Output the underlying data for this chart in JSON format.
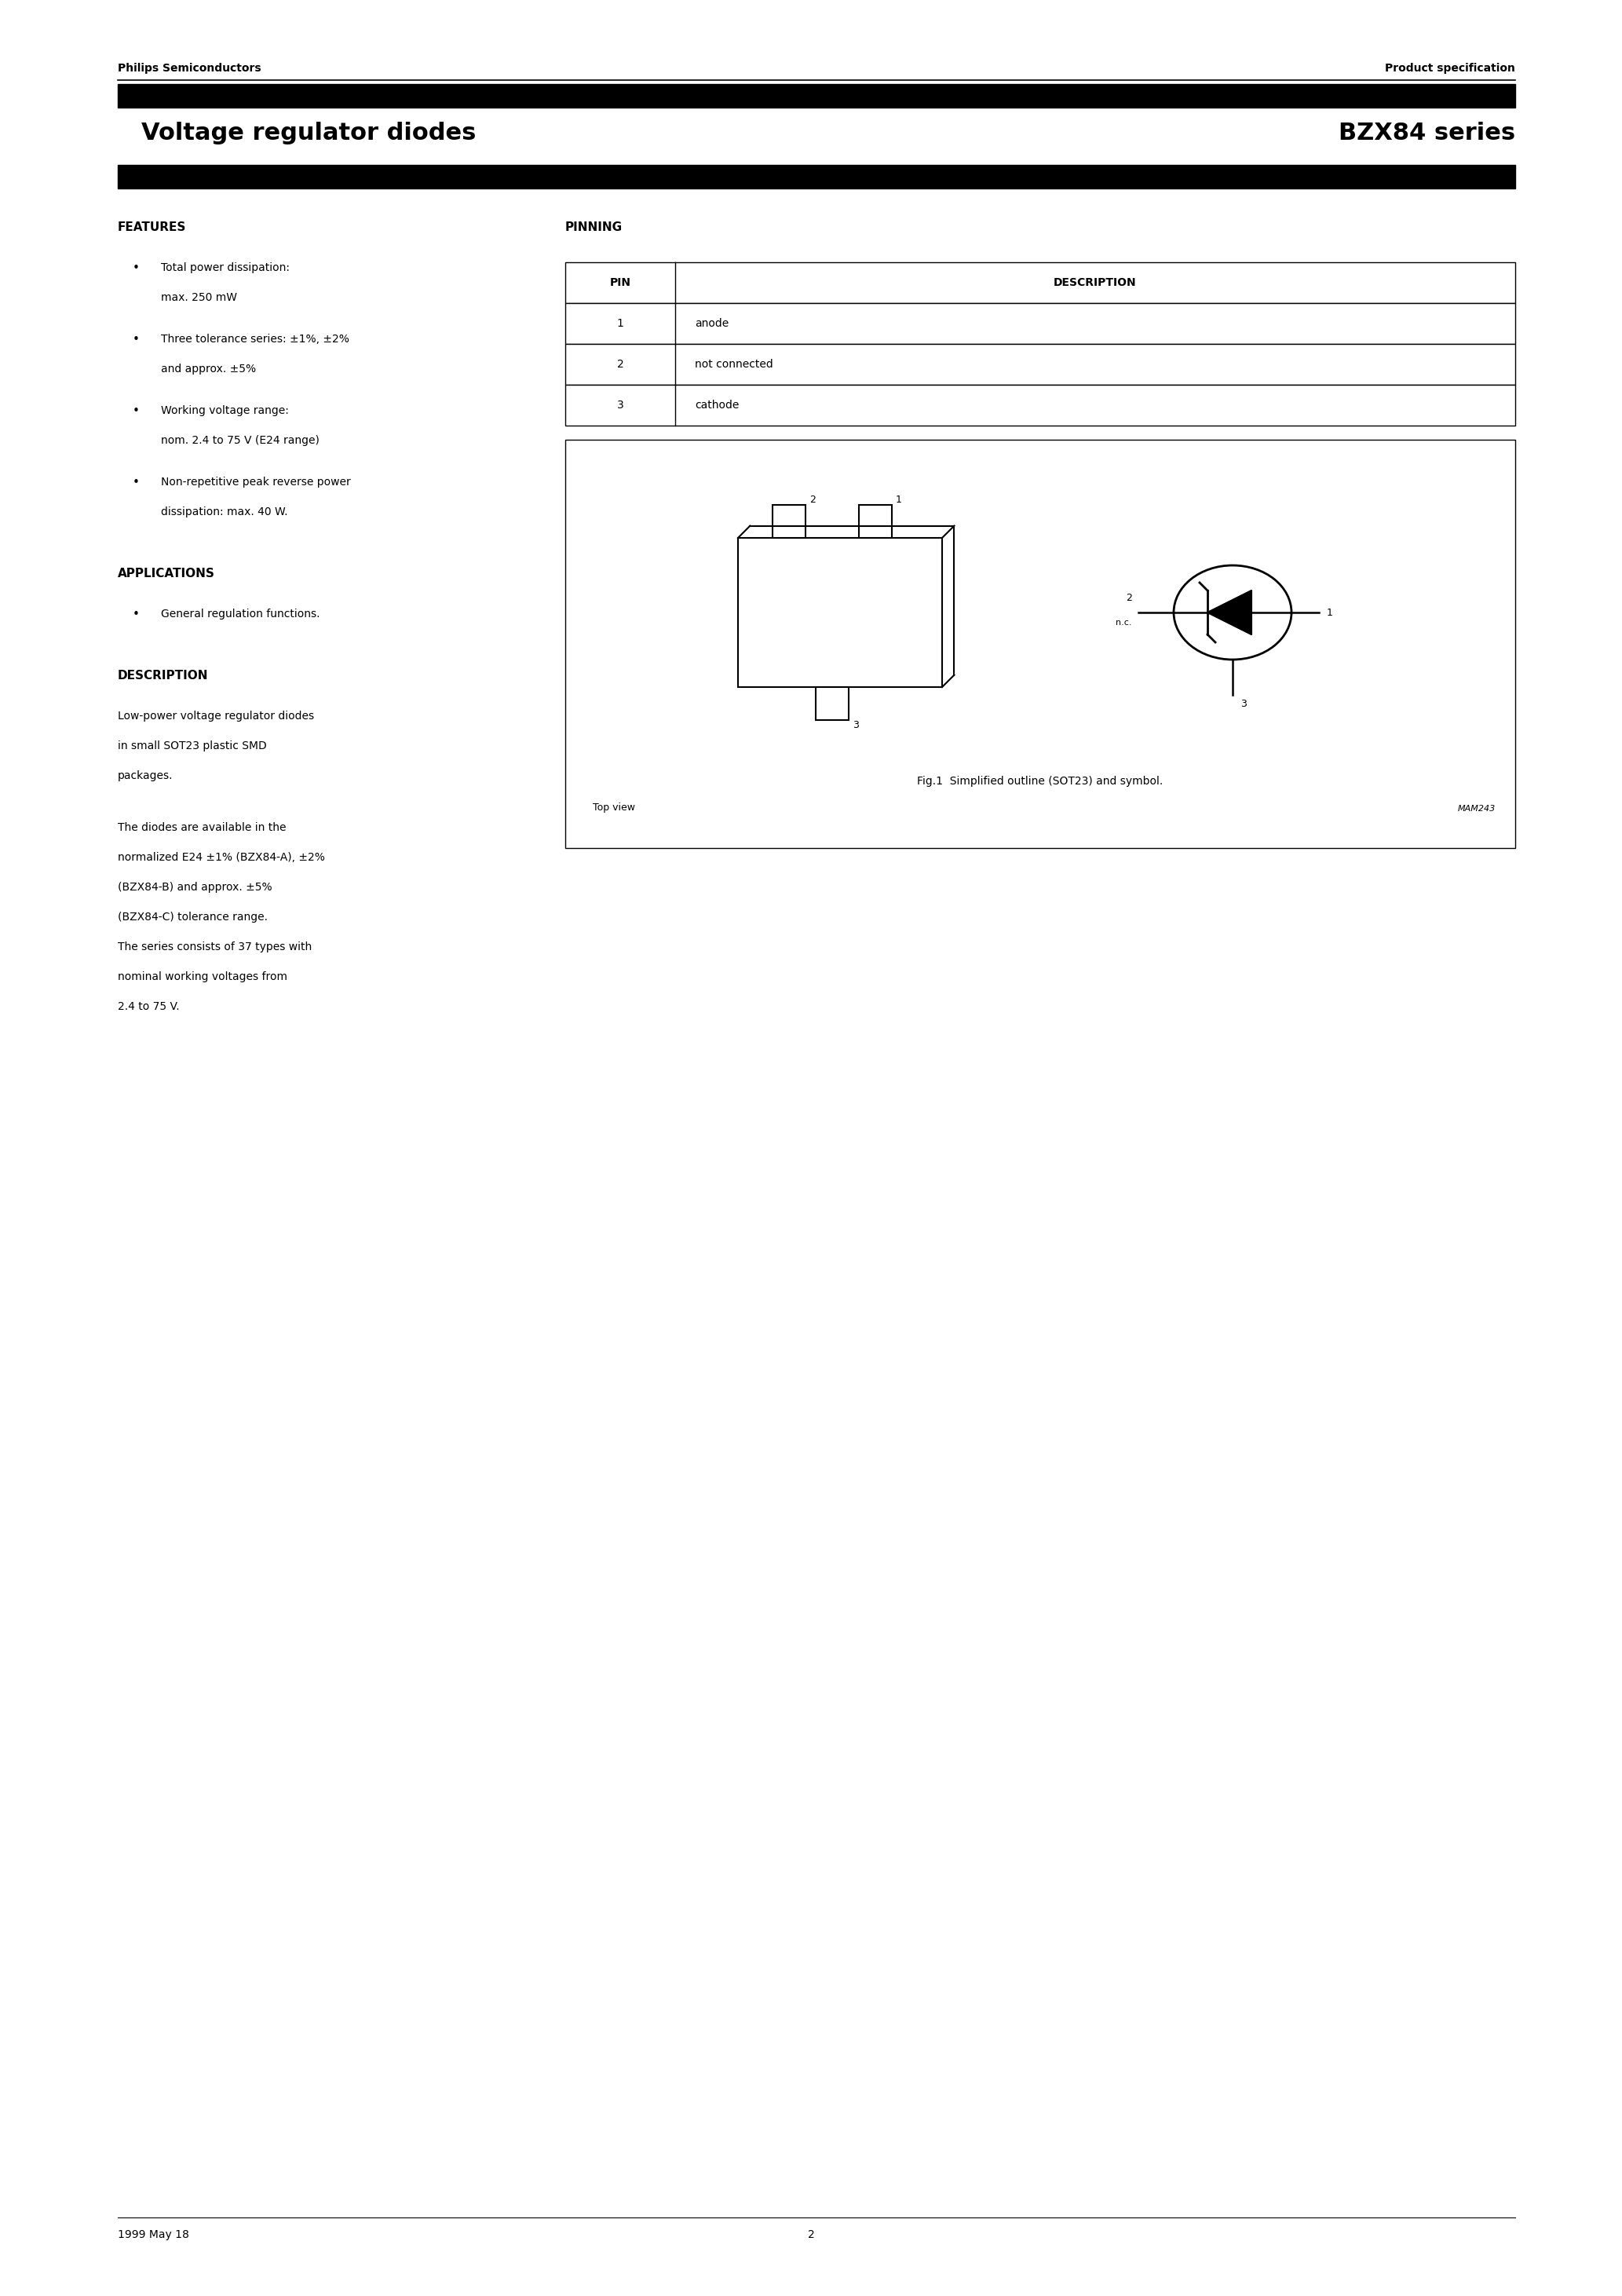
{
  "page_title_left": "Voltage regulator diodes",
  "page_title_right": "BZX84 series",
  "header_left": "Philips Semiconductors",
  "header_right": "Product specification",
  "footer_left": "1999 May 18",
  "footer_center": "2",
  "features_title": "FEATURES",
  "features": [
    "Total power dissipation:\nmax. 250 mW",
    "Three tolerance series: ±1%, ±2%\nand approx. ±5%",
    "Working voltage range:\nnom. 2.4 to 75 V (E24 range)",
    "Non-repetitive peak reverse power\ndissipation: max. 40 W."
  ],
  "applications_title": "APPLICATIONS",
  "applications": [
    "General regulation functions."
  ],
  "description_title": "DESCRIPTION",
  "description_para1": "Low-power voltage regulator diodes\nin small SOT23 plastic SMD\npackages.",
  "description_para2": "The diodes are available in the\nnormalized E24 ±1% (BZX84-A), ±2%\n(BZX84-B) and approx. ±5%\n(BZX84-C) tolerance range.\nThe series consists of 37 types with\nnominal working voltages from\n2.4 to 75 V.",
  "pinning_title": "PINNING",
  "pin_headers": [
    "PIN",
    "DESCRIPTION"
  ],
  "pin_data": [
    [
      "1",
      "anode"
    ],
    [
      "2",
      "not connected"
    ],
    [
      "3",
      "cathode"
    ]
  ],
  "fig_caption": "Fig.1  Simplified outline (SOT23) and symbol.",
  "fig_label": "MAM243",
  "top_view_label": "Top view",
  "bg_color": "#ffffff",
  "text_color": "#000000"
}
